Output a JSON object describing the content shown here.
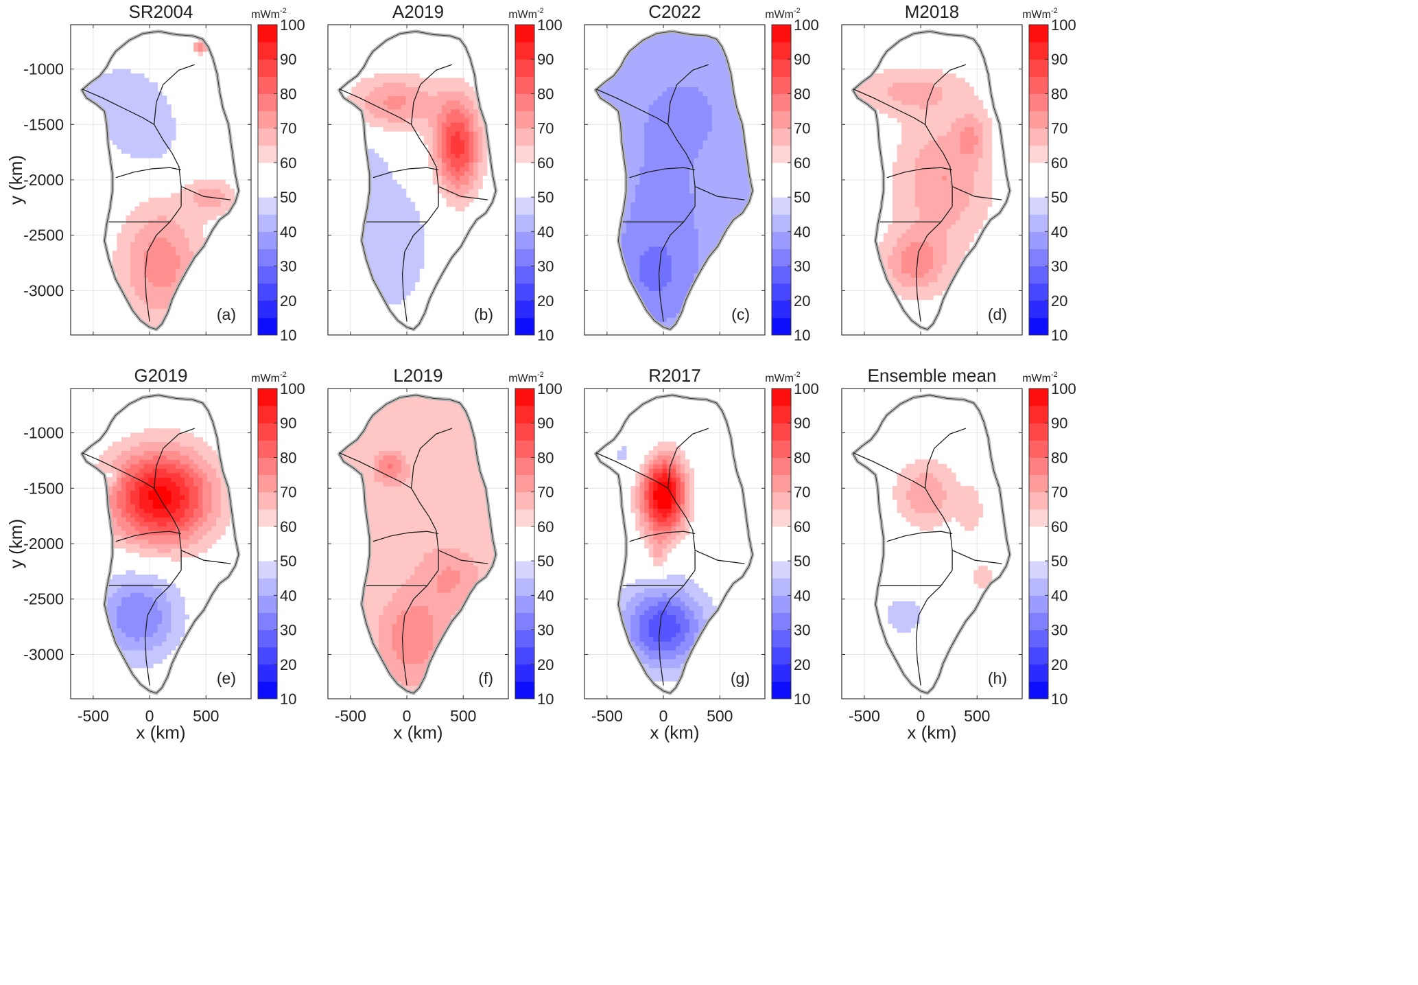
{
  "figure": {
    "xlabel": "x (km)",
    "ylabel": "y (km)",
    "colorbar_unit": "mWm",
    "colorbar_unit_exp": "-2",
    "colors": {
      "low": "#0000ff",
      "mid": "#ffffff",
      "high": "#ff0000",
      "coast": "#b4b4b4",
      "divide": "#1e1e1e",
      "grid": "#e4e4e4"
    }
  },
  "chart_data": [
    {
      "type": "heatmap",
      "title": "SR2004",
      "panel_label": "(a)",
      "xlim": [
        -700,
        900
      ],
      "ylim": [
        -3400,
        -600
      ],
      "xticks": [
        -500,
        0,
        500
      ],
      "yticks": [
        -1000,
        -1500,
        -2000,
        -2500,
        -3000
      ],
      "colorbar": {
        "min": 10,
        "max": 100,
        "ticks": [
          100,
          90,
          80,
          70,
          60,
          50,
          40,
          30,
          20,
          10
        ]
      },
      "background": 55,
      "blobs": [
        {
          "x": -250,
          "y": -1300,
          "sx": 350,
          "sy": 300,
          "v": -8
        },
        {
          "x": 0,
          "y": -1650,
          "sx": 200,
          "sy": 200,
          "v": -6
        },
        {
          "x": 100,
          "y": -2750,
          "sx": 260,
          "sy": 380,
          "v": 18
        },
        {
          "x": 550,
          "y": -2150,
          "sx": 150,
          "sy": 120,
          "v": 12
        },
        {
          "x": 450,
          "y": -800,
          "sx": 40,
          "sy": 40,
          "v": 20
        }
      ]
    },
    {
      "type": "heatmap",
      "title": "A2019",
      "panel_label": "(b)",
      "xlim": [
        -700,
        900
      ],
      "ylim": [
        -3400,
        -600
      ],
      "xticks": [
        -500,
        0,
        500
      ],
      "yticks": [
        -1000,
        -1500,
        -2000,
        -2500,
        -3000
      ],
      "colorbar": {
        "min": 10,
        "max": 100,
        "ticks": [
          100,
          90,
          80,
          70,
          60,
          50,
          40,
          30,
          20,
          10
        ]
      },
      "background": 55,
      "blobs": [
        {
          "x": -100,
          "y": -1300,
          "sx": 280,
          "sy": 180,
          "v": 16
        },
        {
          "x": 450,
          "y": -1700,
          "sx": 140,
          "sy": 300,
          "v": 32
        },
        {
          "x": -150,
          "y": -2600,
          "sx": 260,
          "sy": 450,
          "v": -10
        },
        {
          "x": -400,
          "y": -1900,
          "sx": 150,
          "sy": 200,
          "v": -8
        }
      ]
    },
    {
      "type": "heatmap",
      "title": "C2022",
      "panel_label": "(c)",
      "xlim": [
        -700,
        900
      ],
      "ylim": [
        -3400,
        -600
      ],
      "xticks": [
        -500,
        0,
        500
      ],
      "yticks": [
        -1000,
        -1500,
        -2000,
        -2500,
        -3000
      ],
      "colorbar": {
        "min": 10,
        "max": 100,
        "ticks": [
          100,
          90,
          80,
          70,
          60,
          50,
          40,
          30,
          20,
          10
        ]
      },
      "background": 44,
      "blobs": [
        {
          "x": 0,
          "y": -2400,
          "sx": 300,
          "sy": 700,
          "v": -6
        },
        {
          "x": 200,
          "y": -1400,
          "sx": 250,
          "sy": 250,
          "v": -5
        },
        {
          "x": -100,
          "y": -2850,
          "sx": 200,
          "sy": 250,
          "v": -6
        }
      ]
    },
    {
      "type": "heatmap",
      "title": "M2018",
      "panel_label": "(d)",
      "xlim": [
        -700,
        900
      ],
      "ylim": [
        -3400,
        -600
      ],
      "xticks": [
        -500,
        0,
        500
      ],
      "yticks": [
        -1000,
        -1500,
        -2000,
        -2500,
        -3000
      ],
      "colorbar": {
        "min": 10,
        "max": 100,
        "ticks": [
          100,
          90,
          80,
          70,
          60,
          50,
          40,
          30,
          20,
          10
        ]
      },
      "background": 56,
      "blobs": [
        {
          "x": 200,
          "y": -2000,
          "sx": 280,
          "sy": 400,
          "v": 14
        },
        {
          "x": -50,
          "y": -2750,
          "sx": 200,
          "sy": 200,
          "v": 16
        },
        {
          "x": -100,
          "y": -1200,
          "sx": 350,
          "sy": 150,
          "v": 10
        },
        {
          "x": 450,
          "y": -1600,
          "sx": 100,
          "sy": 150,
          "v": 10
        }
      ]
    },
    {
      "type": "heatmap",
      "title": "G2019",
      "panel_label": "(e)",
      "xlim": [
        -700,
        900
      ],
      "ylim": [
        -3400,
        -600
      ],
      "xticks": [
        -500,
        0,
        500
      ],
      "yticks": [
        -1000,
        -1500,
        -2000,
        -2500,
        -3000
      ],
      "colorbar": {
        "min": 10,
        "max": 100,
        "ticks": [
          100,
          90,
          80,
          70,
          60,
          50,
          40,
          30,
          20,
          10
        ]
      },
      "background": 55,
      "blobs": [
        {
          "x": 100,
          "y": -1580,
          "sx": 320,
          "sy": 300,
          "v": 42
        },
        {
          "x": -100,
          "y": -2650,
          "sx": 260,
          "sy": 280,
          "v": -20
        },
        {
          "x": -350,
          "y": -1400,
          "sx": 60,
          "sy": 60,
          "v": -8
        }
      ]
    },
    {
      "type": "heatmap",
      "title": "L2019",
      "panel_label": "(f)",
      "xlim": [
        -700,
        900
      ],
      "ylim": [
        -3400,
        -600
      ],
      "xticks": [
        -500,
        0,
        500
      ],
      "yticks": [
        -1000,
        -1500,
        -2000,
        -2500,
        -3000
      ],
      "colorbar": {
        "min": 10,
        "max": 100,
        "ticks": [
          100,
          90,
          80,
          70,
          60,
          50,
          40,
          30,
          20,
          10
        ]
      },
      "background": 60,
      "blobs": [
        {
          "x": -150,
          "y": -1300,
          "sx": 100,
          "sy": 100,
          "v": 14
        },
        {
          "x": 50,
          "y": -2850,
          "sx": 220,
          "sy": 300,
          "v": 14
        },
        {
          "x": 400,
          "y": -2300,
          "sx": 200,
          "sy": 200,
          "v": 10
        },
        {
          "x": 0,
          "y": -1700,
          "sx": 300,
          "sy": 300,
          "v": 4
        }
      ]
    },
    {
      "type": "heatmap",
      "title": "R2017",
      "panel_label": "(g)",
      "xlim": [
        -700,
        900
      ],
      "ylim": [
        -3400,
        -600
      ],
      "xticks": [
        -500,
        0,
        500
      ],
      "yticks": [
        -1000,
        -1500,
        -2000,
        -2500,
        -3000
      ],
      "colorbar": {
        "min": 10,
        "max": 100,
        "ticks": [
          100,
          90,
          80,
          70,
          60,
          50,
          40,
          30,
          20,
          10
        ]
      },
      "background": 54,
      "blobs": [
        {
          "x": 0,
          "y": -1550,
          "sx": 140,
          "sy": 260,
          "v": 48
        },
        {
          "x": -50,
          "y": -2100,
          "sx": 60,
          "sy": 120,
          "v": 8
        },
        {
          "x": 0,
          "y": -2750,
          "sx": 250,
          "sy": 250,
          "v": -28
        },
        {
          "x": -200,
          "y": -1200,
          "sx": 250,
          "sy": 150,
          "v": -6
        }
      ]
    },
    {
      "type": "heatmap",
      "title": "Ensemble mean",
      "panel_label": "(h)",
      "xlim": [
        -700,
        900
      ],
      "ylim": [
        -3400,
        -600
      ],
      "xticks": [
        -500,
        0,
        500
      ],
      "yticks": [
        -1000,
        -1500,
        -2000,
        -2500,
        -3000
      ],
      "colorbar": {
        "min": 10,
        "max": 100,
        "ticks": [
          100,
          90,
          80,
          70,
          60,
          50,
          40,
          30,
          20,
          10
        ]
      },
      "background": 55,
      "blobs": [
        {
          "x": 50,
          "y": -1550,
          "sx": 200,
          "sy": 220,
          "v": 14
        },
        {
          "x": 450,
          "y": -1700,
          "sx": 80,
          "sy": 150,
          "v": 8
        },
        {
          "x": -150,
          "y": -2650,
          "sx": 150,
          "sy": 150,
          "v": -8
        },
        {
          "x": 550,
          "y": -2300,
          "sx": 100,
          "sy": 100,
          "v": 8
        }
      ]
    }
  ]
}
